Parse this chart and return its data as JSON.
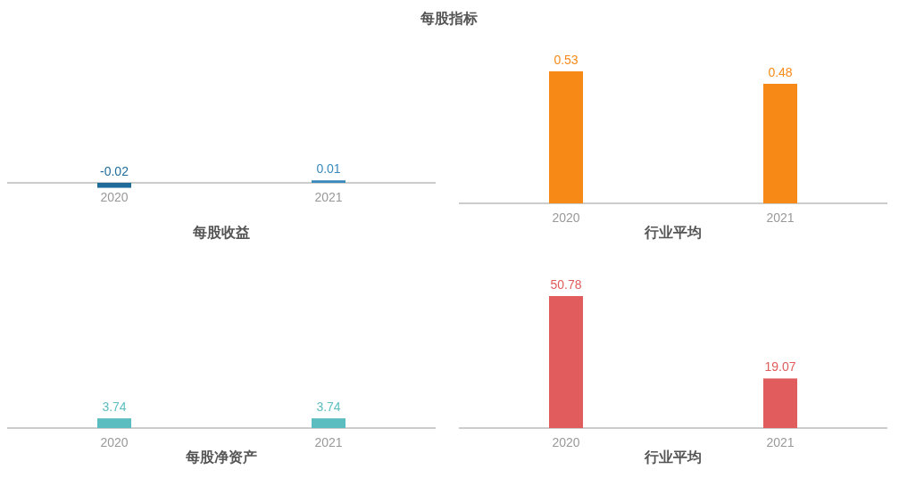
{
  "chart_data": [
    {
      "type": "bar",
      "title": "每股指标",
      "categories": [
        "2020",
        "2021"
      ],
      "values": [
        -0.02,
        0.01
      ],
      "colors": [
        "#1f6b9a",
        "#3a89bd"
      ],
      "data_labels": true,
      "xlabel": "每股收益"
    },
    {
      "type": "bar",
      "categories": [
        "2020",
        "2021"
      ],
      "values": [
        0.53,
        0.48
      ],
      "colors": [
        "#f78a17",
        "#f78a17"
      ],
      "data_labels": true,
      "xlabel": "行业平均"
    },
    {
      "type": "bar",
      "categories": [
        "2020",
        "2021"
      ],
      "values": [
        3.74,
        3.74
      ],
      "colors": [
        "#5bbdbf",
        "#5bbdbf"
      ],
      "data_labels": true,
      "xlabel": "每股净资产"
    },
    {
      "type": "bar",
      "categories": [
        "2020",
        "2021"
      ],
      "values": [
        50.78,
        19.07
      ],
      "colors": [
        "#e05c5d",
        "#e05c5d"
      ],
      "data_labels": true,
      "xlabel": "行业平均"
    }
  ]
}
